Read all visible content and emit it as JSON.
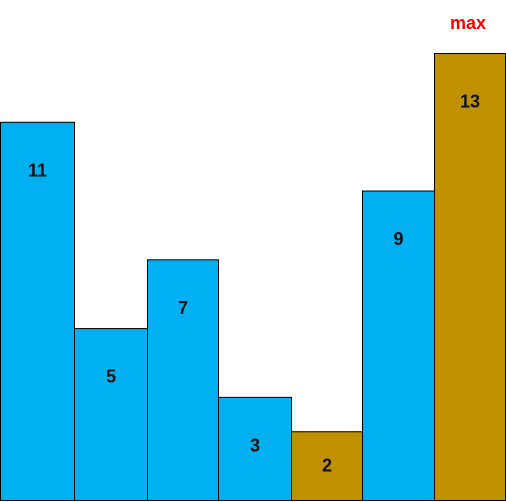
{
  "diagram": {
    "bars": [
      {
        "value": 11,
        "label": "11",
        "highlight": false
      },
      {
        "value": 5,
        "label": "5",
        "highlight": false
      },
      {
        "value": 7,
        "label": "7",
        "highlight": false
      },
      {
        "value": 3,
        "label": "3",
        "highlight": false
      },
      {
        "value": 2,
        "label": "2",
        "highlight": true
      },
      {
        "value": 9,
        "label": "9",
        "highlight": false
      },
      {
        "value": 13,
        "label": "13",
        "highlight": true
      }
    ],
    "max_label": "max",
    "colors": {
      "normal": "#00B0F0",
      "highlight": "#BF9000",
      "outline": "#000000",
      "max_label": "#FF0000"
    }
  }
}
